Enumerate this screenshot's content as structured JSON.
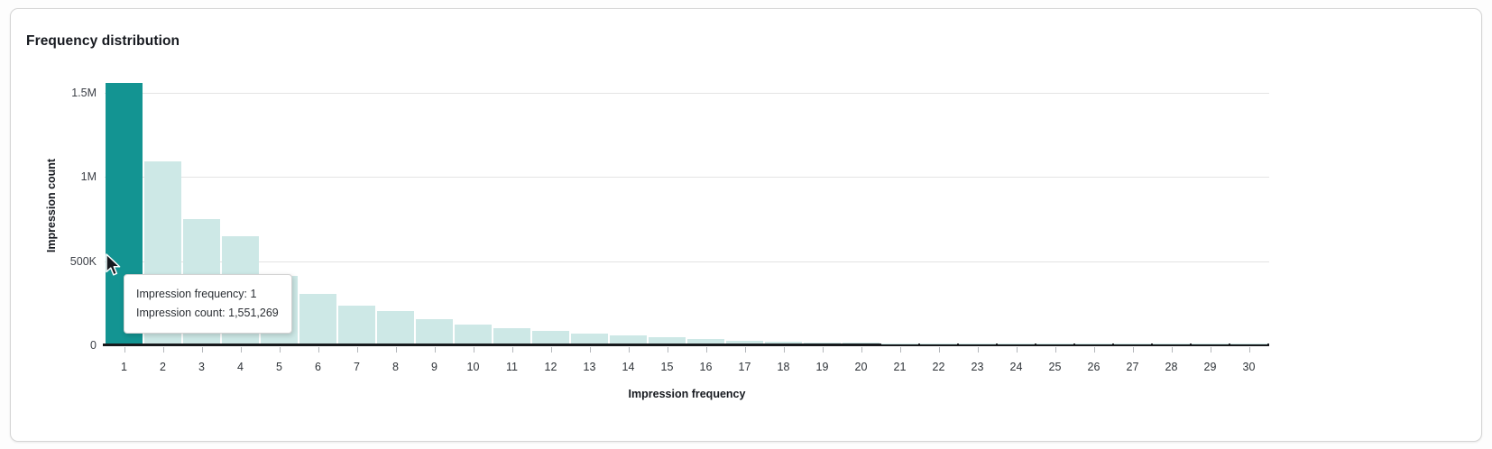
{
  "card": {
    "title": "Frequency distribution"
  },
  "chart_data": {
    "type": "bar",
    "title": "Frequency distribution",
    "xlabel": "Impression frequency",
    "ylabel": "Impression count",
    "categories": [
      1,
      2,
      3,
      4,
      5,
      6,
      7,
      8,
      9,
      10,
      11,
      12,
      13,
      14,
      15,
      16,
      17,
      18,
      19,
      20,
      21,
      22,
      23,
      24,
      25,
      26,
      27,
      28,
      29,
      30
    ],
    "values": [
      1551269,
      1085000,
      740000,
      638000,
      402000,
      295000,
      226000,
      194000,
      146000,
      113000,
      90000,
      76000,
      59000,
      48000,
      38000,
      27000,
      18000,
      11000,
      7000,
      4000,
      2500,
      2000,
      1500,
      1200,
      1000,
      800,
      650,
      500,
      400,
      300
    ],
    "ylim": [
      0,
      1551269
    ],
    "ytick_values": [
      0,
      500000,
      1000000,
      1500000
    ],
    "ytick_labels": [
      "0",
      "500K",
      "1M",
      "1.5M"
    ],
    "grid": true,
    "legend": "none",
    "highlighted_index": 0,
    "colors": {
      "bar": "#cde8e6",
      "bar_highlighted": "#139492",
      "axis": "#17191c",
      "gridline": "#e4e4e4"
    }
  },
  "tooltip": {
    "line1": "Impression frequency: 1",
    "line2": "Impression count: 1,551,269"
  }
}
